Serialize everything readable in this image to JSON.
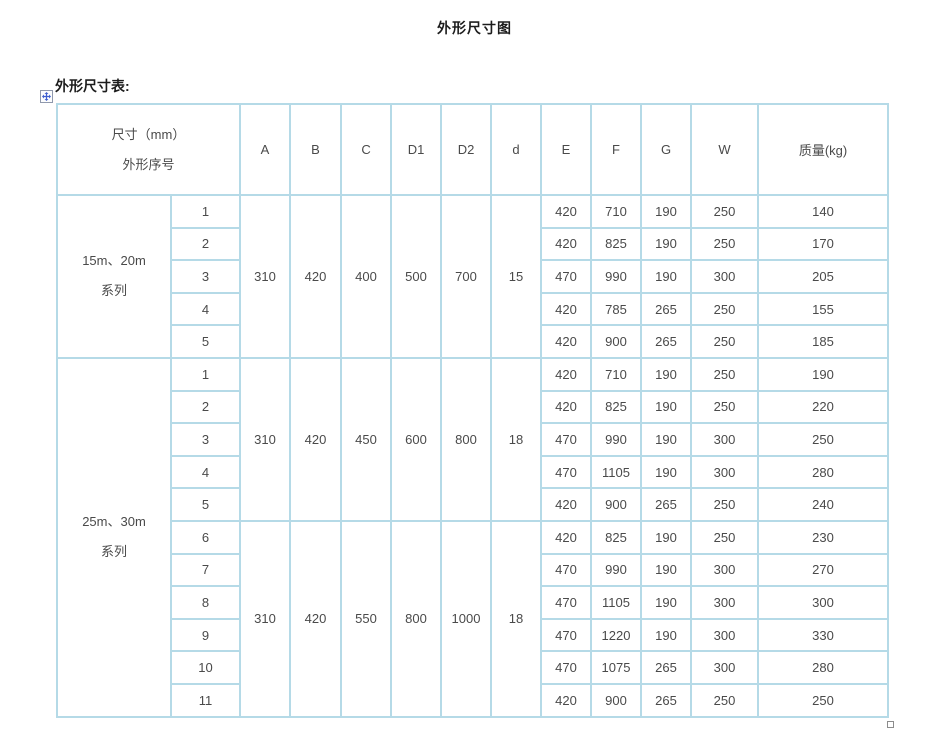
{
  "page": {
    "title": "外形尺寸图",
    "table_caption": "外形尺寸表:"
  },
  "icons": {
    "move_handle": "table-move-handle-icon",
    "resize_handle": "table-resize-handle"
  },
  "colors": {
    "table_border": "#b5dae7",
    "handle_arrow": "#3f5fd0",
    "text": "#4a4a4a"
  },
  "table": {
    "corner": {
      "line1": "尺寸（mm）",
      "line2": "外形序号"
    },
    "columns": [
      "A",
      "B",
      "C",
      "D1",
      "D2",
      "d",
      "E",
      "F",
      "G",
      "W",
      "质量(kg)"
    ],
    "groups": [
      {
        "series": [
          "15m、20m",
          "系列"
        ],
        "blocks": [
          {
            "shared": {
              "A": "310",
              "B": "420",
              "C": "400",
              "D1": "500",
              "D2": "700",
              "d": "15"
            },
            "d1_left_aligned": true,
            "rows": [
              {
                "no": "1",
                "E": "420",
                "F": "710",
                "G": "190",
                "W": "250",
                "mass": "140"
              },
              {
                "no": "2",
                "E": "420",
                "F": "825",
                "G": "190",
                "W": "250",
                "mass": "170"
              },
              {
                "no": "3",
                "E": "470",
                "F": "990",
                "G": "190",
                "W": "300",
                "mass": "205"
              },
              {
                "no": "4",
                "E": "420",
                "F": "785",
                "G": "265",
                "W": "250",
                "mass": "155"
              },
              {
                "no": "5",
                "E": "420",
                "F": "900",
                "G": "265",
                "W": "250",
                "mass": "185"
              }
            ]
          }
        ]
      },
      {
        "series": [
          "25m、30m",
          "系列"
        ],
        "blocks": [
          {
            "shared": {
              "A": "310",
              "B": "420",
              "C": "450",
              "D1": "600",
              "D2": "800",
              "d": "18"
            },
            "d1_left_aligned": false,
            "rows": [
              {
                "no": "1",
                "E": "420",
                "F": "710",
                "G": "190",
                "W": "250",
                "mass": "190"
              },
              {
                "no": "2",
                "E": "420",
                "F": "825",
                "G": "190",
                "W": "250",
                "mass": "220"
              },
              {
                "no": "3",
                "E": "470",
                "F": "990",
                "G": "190",
                "W": "300",
                "mass": "250"
              },
              {
                "no": "4",
                "E": "470",
                "F": "1105",
                "G": "190",
                "W": "300",
                "mass": "280"
              },
              {
                "no": "5",
                "E": "420",
                "F": "900",
                "G": "265",
                "W": "250",
                "mass": "240"
              }
            ]
          },
          {
            "shared": {
              "A": "310",
              "B": "420",
              "C": "550",
              "D1": "800",
              "D2": "1000",
              "d": "18"
            },
            "d1_left_aligned": false,
            "rows": [
              {
                "no": "6",
                "E": "420",
                "F": "825",
                "G": "190",
                "W": "250",
                "mass": "230"
              },
              {
                "no": "7",
                "E": "470",
                "F": "990",
                "G": "190",
                "W": "300",
                "mass": "270"
              },
              {
                "no": "8",
                "E": "470",
                "F": "1105",
                "G": "190",
                "W": "300",
                "mass": "300"
              },
              {
                "no": "9",
                "E": "470",
                "F": "1220",
                "G": "190",
                "W": "300",
                "mass": "330"
              },
              {
                "no": "10",
                "E": "470",
                "F": "1075",
                "G": "265",
                "W": "300",
                "mass": "280"
              },
              {
                "no": "11",
                "E": "420",
                "F": "900",
                "G": "265",
                "W": "250",
                "mass": "250"
              }
            ]
          }
        ]
      }
    ]
  }
}
